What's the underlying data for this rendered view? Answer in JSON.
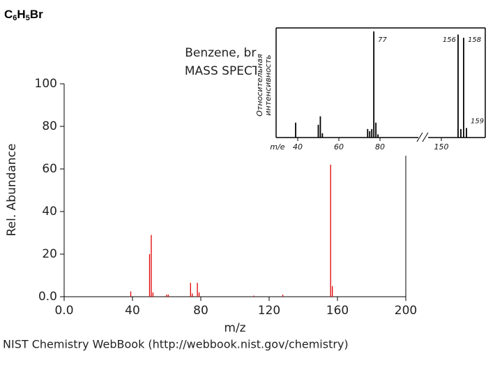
{
  "slide": {
    "formula": [
      "C",
      "6",
      "H",
      "5",
      "Br"
    ]
  },
  "chart_data": [
    {
      "type": "stem",
      "title": [
        "Benzene, bromo-",
        "MASS SPECTRUM"
      ],
      "x_label": "m/z",
      "y_label": "Rel. Abundance",
      "color": "#e00000",
      "x": [
        39,
        50,
        51,
        52,
        60,
        61,
        74,
        75,
        78,
        79,
        111,
        128,
        156,
        157
      ],
      "values": [
        2.5,
        20,
        29,
        2,
        1,
        1,
        6.5,
        1.5,
        6.5,
        2,
        0.5,
        1,
        62,
        5
      ],
      "xlim": [
        0,
        200
      ],
      "ylim": [
        0,
        100
      ],
      "xticks": [
        {
          "value": 0,
          "label": "0.0"
        },
        40,
        80,
        120,
        160,
        200
      ],
      "yticks": [
        {
          "value": 0,
          "label": "0.0"
        },
        20,
        40,
        60,
        80,
        100
      ]
    },
    {
      "type": "stem",
      "x_label": "m/e",
      "y_label": [
        "Относительная",
        "интенсивность"
      ],
      "color": "#000000",
      "x": [
        39,
        50,
        51,
        52,
        74,
        75,
        76,
        77,
        78,
        79,
        156,
        157,
        158,
        159
      ],
      "values": [
        14,
        12,
        20,
        4,
        8,
        6,
        8,
        100,
        14,
        3,
        97,
        8,
        94,
        9
      ],
      "ylim": [
        0,
        100
      ],
      "xticks": [
        40,
        60,
        80,
        150
      ],
      "annotations": [
        {
          "text": "77",
          "x": 77
        },
        {
          "text": "156",
          "x": 156
        },
        {
          "text": "158",
          "x": 158
        },
        {
          "text": "159",
          "x": 159
        }
      ]
    }
  ],
  "source": "NIST Chemistry WebBook (http://webbook.nist.gov/chemistry)"
}
